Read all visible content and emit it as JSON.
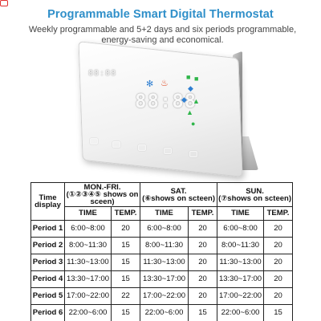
{
  "header": {
    "title": "Programmable Smart Digital Thermostat",
    "subtitle_line1": "Weekly programmable and 5+2 days and six periods programmable,",
    "subtitle_line2": "energy-saving and economical."
  },
  "device": {
    "display_digits": "88:88",
    "top_digits": "88:88",
    "icons": [
      "fan-icon",
      "flame-icon",
      "power-icon"
    ],
    "accent_green": "#2fb54a",
    "accent_blue": "#2f7fd1",
    "accent_red": "#e03030"
  },
  "schedule": {
    "corner_label": "Time display",
    "groups": [
      {
        "title": "MON.-FRI.",
        "note": "(①②③④⑤ shows on sceen)"
      },
      {
        "title": "SAT.",
        "note": "(⑥shows on scteen)"
      },
      {
        "title": "SUN.",
        "note": "(⑦shows on scteen)"
      }
    ],
    "sub_headers": [
      "TIME",
      "TEMP.",
      "TIME",
      "TEMP.",
      "TIME",
      "TEMP."
    ],
    "rows": [
      {
        "label": "Period 1",
        "cells": [
          "6:00~8:00",
          "20",
          "6:00~8:00",
          "20",
          "6:00~8:00",
          "20"
        ]
      },
      {
        "label": "Period 2",
        "cells": [
          "8:00~11:30",
          "15",
          "8:00~11:30",
          "20",
          "8:00~11:30",
          "20"
        ]
      },
      {
        "label": "Period 3",
        "cells": [
          "11:30~13:00",
          "15",
          "11:30~13:00",
          "20",
          "11:30~13:00",
          "20"
        ]
      },
      {
        "label": "Period 4",
        "cells": [
          "13:30~17:00",
          "15",
          "13:30~17:00",
          "20",
          "13:30~17:00",
          "20"
        ]
      },
      {
        "label": "Period 5",
        "cells": [
          "17:00~22:00",
          "22",
          "17:00~22:00",
          "20",
          "17:00~22:00",
          "20"
        ]
      },
      {
        "label": "Period 6",
        "cells": [
          "22:00~6:00",
          "15",
          "22:00~6:00",
          "15",
          "22:00~6:00",
          "15"
        ]
      }
    ]
  }
}
